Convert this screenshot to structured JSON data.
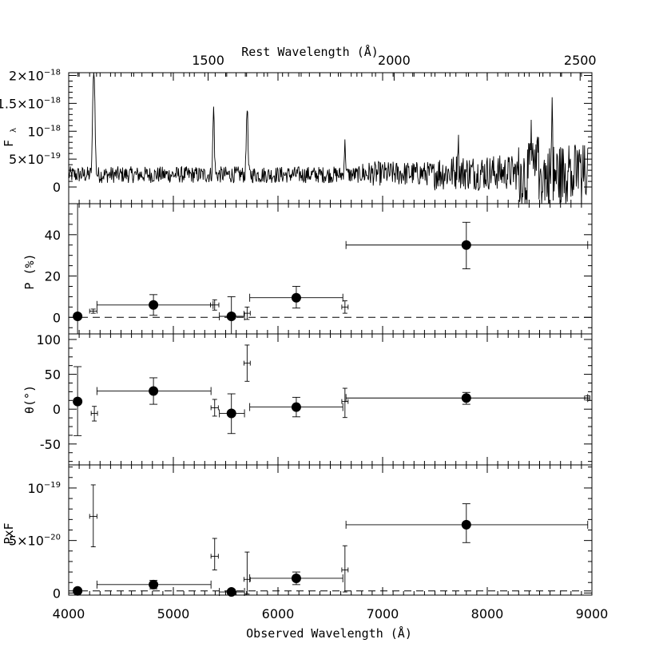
{
  "chart_data": {
    "type": "multi-panel spectropolarimetry",
    "x_axis": {
      "label": "Observed Wavelength (Å)",
      "range": [
        4000,
        9000
      ],
      "ticks": [
        4000,
        5000,
        6000,
        7000,
        8000,
        9000
      ]
    },
    "top_axis": {
      "label": "Rest Wavelength (Å)",
      "ticks": [
        1500,
        2000,
        2500
      ],
      "rest_to_observed_factor": 3.555
    },
    "panels": [
      {
        "id": "flux",
        "type": "line",
        "ylabel_main": "F",
        "ylabel_sub": "λ",
        "ylim": [
          -3e-19,
          2.05e-18
        ],
        "ytick_labels": [
          {
            "value": 0,
            "mantissa": "0",
            "exp": ""
          },
          {
            "value": 5e-19,
            "mantissa": "5×10",
            "exp": "−19"
          },
          {
            "value": 1e-18,
            "mantissa": "10",
            "exp": "−18"
          },
          {
            "value": 1.5e-18,
            "mantissa": "1.5×10",
            "exp": "−18"
          },
          {
            "value": 2e-18,
            "mantissa": "2×10",
            "exp": "−18"
          }
        ],
        "emission_lines": [
          {
            "x": 4240,
            "peak": 2.3e-18,
            "width": 14
          },
          {
            "x": 5385,
            "peak": 1.4e-18,
            "width": 10
          },
          {
            "x": 5705,
            "peak": 1.5e-18,
            "width": 10
          },
          {
            "x": 6640,
            "peak": 7.5e-19,
            "width": 10
          },
          {
            "x": 7720,
            "peak": 9e-19,
            "width": 8
          },
          {
            "x": 8420,
            "peak": 1.2e-18,
            "width": 9
          },
          {
            "x": 8480,
            "peak": 1.4e-18,
            "width": 7
          },
          {
            "x": 8620,
            "peak": 1.45e-18,
            "width": 7
          },
          {
            "x": 8780,
            "peak": 1.2e-18,
            "width": 7
          },
          {
            "x": 8880,
            "peak": 9e-19,
            "width": 7
          }
        ]
      },
      {
        "id": "polarization",
        "type": "scatter",
        "ylabel": "P (%)",
        "ylim": [
          -8,
          55
        ],
        "yticks": [
          0,
          20,
          40
        ],
        "reference_line": 0,
        "points": [
          {
            "x": 4085,
            "y": 0.5,
            "xl": 4085,
            "xr": 4085,
            "yl": -8,
            "yh": 55
          },
          {
            "x": 4810,
            "y": 6,
            "xl": 4270,
            "xr": 5380,
            "yl": 1,
            "yh": 11
          },
          {
            "x": 5555,
            "y": 0.5,
            "xl": 5440,
            "xr": 5680,
            "yl": -8,
            "yh": 10
          },
          {
            "x": 6175,
            "y": 9.5,
            "xl": 5730,
            "xr": 6620,
            "yl": 4.5,
            "yh": 15
          },
          {
            "x": 7800,
            "y": 35,
            "xl": 6650,
            "xr": 8960,
            "yl": 23.5,
            "yh": 46
          }
        ],
        "small_points": [
          {
            "x": 4235,
            "y": 3,
            "xl": 4200,
            "xr": 4270,
            "yl": 2,
            "yh": 4
          },
          {
            "x": 5395,
            "y": 6,
            "xl": 5355,
            "xr": 5435,
            "yl": 3.5,
            "yh": 8.5
          },
          {
            "x": 5705,
            "y": 2,
            "xl": 5675,
            "xr": 5735,
            "yl": -1,
            "yh": 5
          },
          {
            "x": 6640,
            "y": 5,
            "xl": 6610,
            "xr": 6670,
            "yl": 2,
            "yh": 8
          }
        ]
      },
      {
        "id": "angle",
        "type": "scatter",
        "ylabel": "θ(°)",
        "ylim": [
          -80,
          108
        ],
        "yticks": [
          -50,
          0,
          50,
          100
        ],
        "points": [
          {
            "x": 4085,
            "y": 11,
            "xl": 4085,
            "xr": 4085,
            "yl": -38,
            "yh": 61
          },
          {
            "x": 4810,
            "y": 26,
            "xl": 4270,
            "xr": 5360,
            "yl": 7,
            "yh": 45
          },
          {
            "x": 5555,
            "y": -6,
            "xl": 5440,
            "xr": 5680,
            "yl": -35,
            "yh": 22
          },
          {
            "x": 6175,
            "y": 3,
            "xl": 5730,
            "xr": 6620,
            "yl": -11,
            "yh": 17
          },
          {
            "x": 7800,
            "y": 16,
            "xl": 6650,
            "xr": 8960,
            "yl": 7,
            "yh": 24
          }
        ],
        "small_points": [
          {
            "x": 4245,
            "y": -6,
            "xl": 4215,
            "xr": 4275,
            "yl": -17,
            "yh": 4
          },
          {
            "x": 5395,
            "y": 2,
            "xl": 5360,
            "xr": 5430,
            "yl": -10,
            "yh": 14
          },
          {
            "x": 5705,
            "y": 66,
            "xl": 5675,
            "xr": 5735,
            "yl": 40,
            "yh": 92
          },
          {
            "x": 6640,
            "y": 11,
            "xl": 6610,
            "xr": 6670,
            "yl": -12,
            "yh": 30
          },
          {
            "x": 8960,
            "y": 16,
            "xl": 8930,
            "xr": 8980,
            "yl": 13,
            "yh": 19
          }
        ]
      },
      {
        "id": "polarized_flux",
        "type": "scatter",
        "ylabel": "PxF",
        "ylim": [
          -2e-21,
          1.22e-19
        ],
        "ytick_labels": [
          {
            "value": 0,
            "mantissa": "0",
            "exp": ""
          },
          {
            "value": 5e-20,
            "mantissa": "5×10",
            "exp": "−20"
          },
          {
            "value": 1e-19,
            "mantissa": "10",
            "exp": "−19"
          }
        ],
        "reference_line": 2e-21,
        "points": [
          {
            "x": 4085,
            "y": 2e-21,
            "xl": 4085,
            "xr": 4085,
            "yl": 2e-21,
            "yh": 2e-21
          },
          {
            "x": 4810,
            "y": 8e-21,
            "xl": 4270,
            "xr": 5360,
            "yl": 4e-21,
            "yh": 1.2e-20
          },
          {
            "x": 5555,
            "y": 1e-21,
            "xl": 5440,
            "xr": 5680,
            "yl": 1e-21,
            "yh": 1e-21
          },
          {
            "x": 6175,
            "y": 1.4e-20,
            "xl": 5730,
            "xr": 6620,
            "yl": 8e-21,
            "yh": 2e-20
          },
          {
            "x": 7800,
            "y": 6.5e-20,
            "xl": 6650,
            "xr": 8960,
            "yl": 4.8e-20,
            "yh": 8.5e-20
          }
        ],
        "small_points": [
          {
            "x": 4235,
            "y": 7.3e-20,
            "xl": 4200,
            "xr": 4270,
            "yl": 4.4e-20,
            "yh": 1.03e-19
          },
          {
            "x": 5395,
            "y": 3.5e-20,
            "xl": 5360,
            "xr": 5430,
            "yl": 2.2e-20,
            "yh": 5.2e-20
          },
          {
            "x": 5705,
            "y": 1.3e-20,
            "xl": 5675,
            "xr": 5735,
            "yl": -1e-21,
            "yh": 3.9e-20
          },
          {
            "x": 6640,
            "y": 2.2e-20,
            "xl": 6610,
            "xr": 6670,
            "yl": 1e-21,
            "yh": 4.5e-20
          }
        ]
      }
    ]
  }
}
